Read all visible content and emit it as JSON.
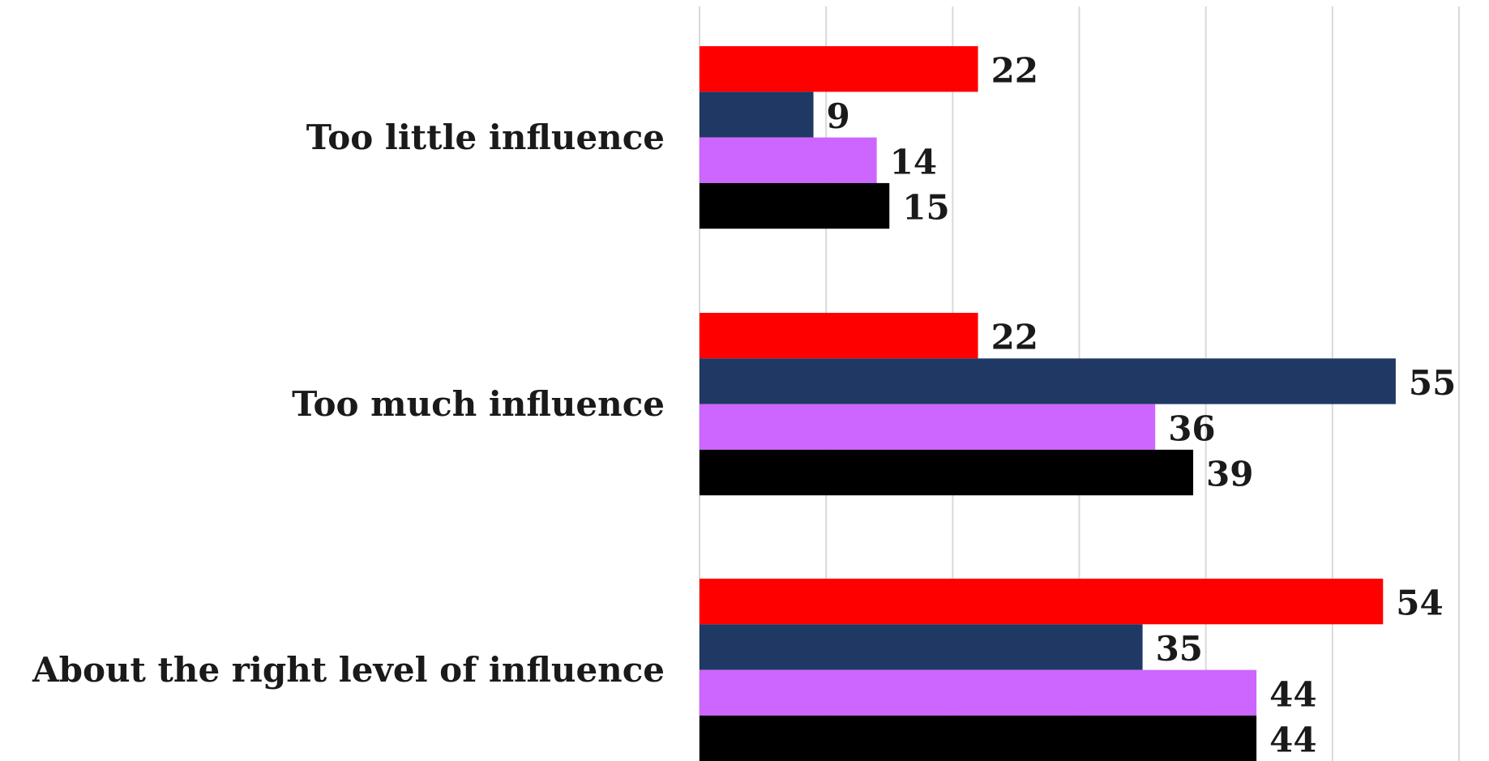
{
  "chart_data": {
    "type": "bar",
    "orientation": "horizontal",
    "categories": [
      "Too little influence",
      "Too much influence",
      "About the right level of influence"
    ],
    "series": [
      {
        "color": "#ff0000",
        "values": [
          22,
          22,
          54
        ]
      },
      {
        "color": "#203864",
        "values": [
          9,
          55,
          35
        ]
      },
      {
        "color": "#cc66ff",
        "values": [
          14,
          36,
          44
        ]
      },
      {
        "color": "#000000",
        "values": [
          15,
          39,
          44
        ]
      }
    ],
    "xlim": [
      0,
      60
    ],
    "gridlines": true,
    "legend": "none",
    "data_labels": true
  }
}
